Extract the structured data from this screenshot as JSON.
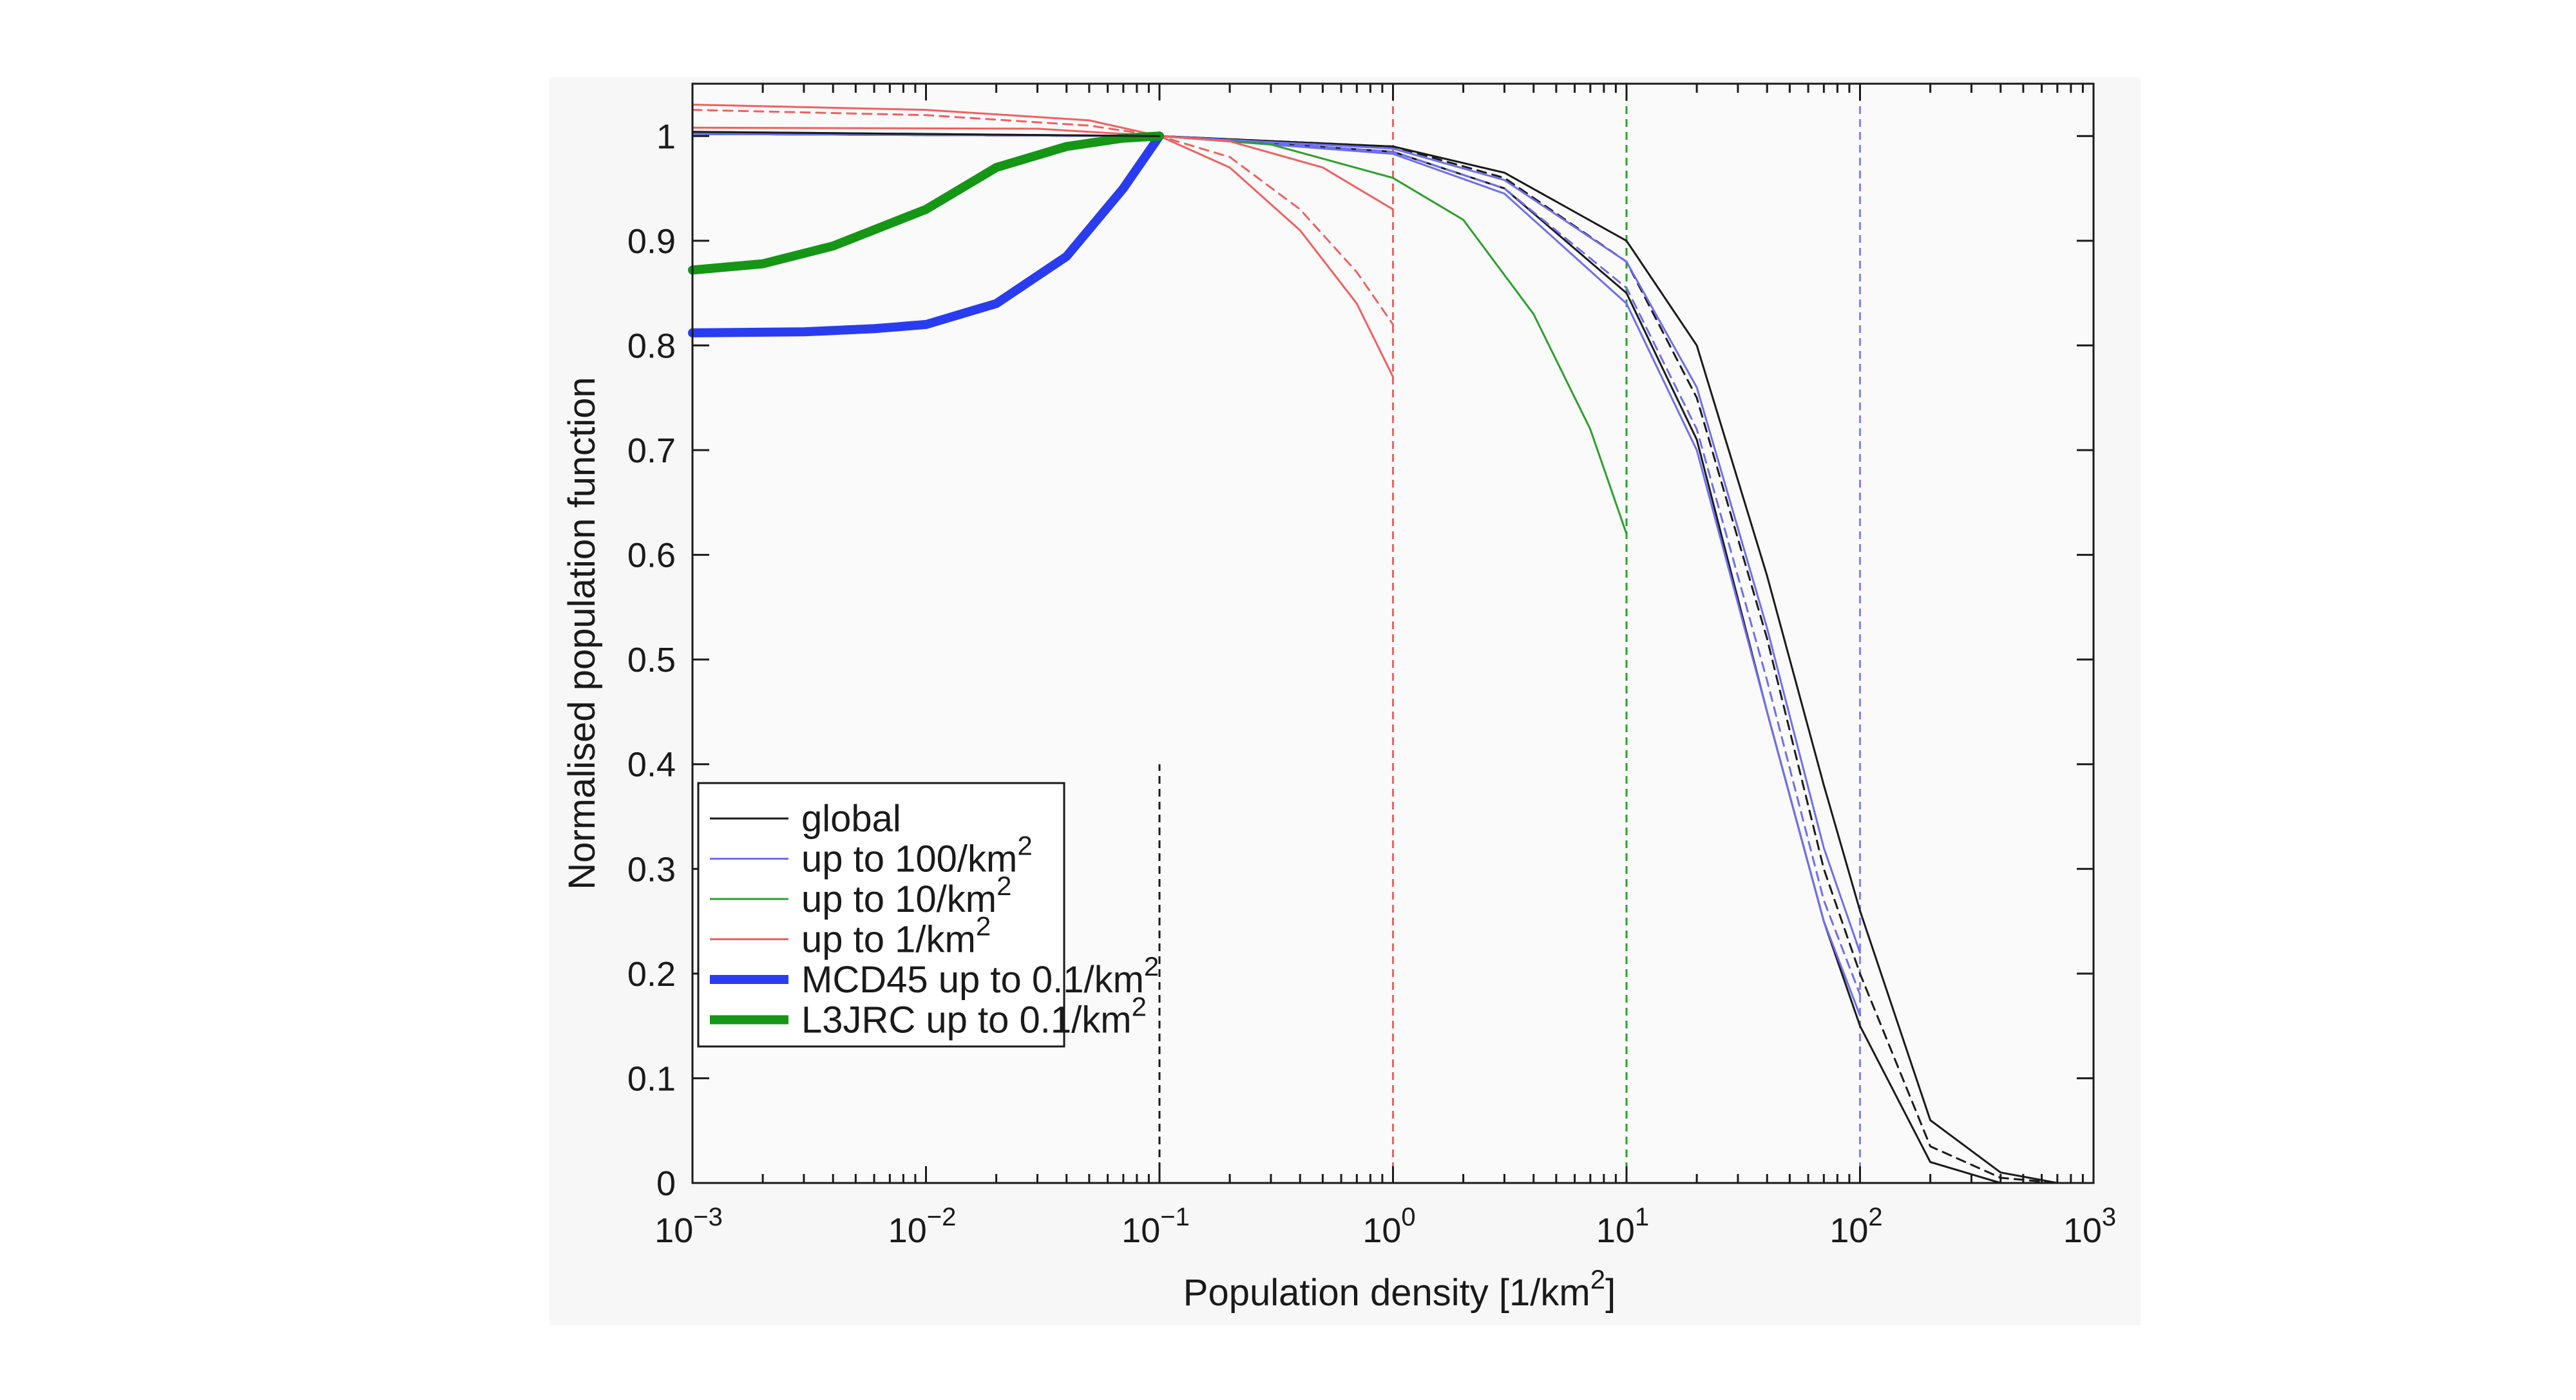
{
  "chart_data": {
    "type": "line",
    "xscale": "log",
    "xlim": [
      0.001,
      1000
    ],
    "ylim": [
      0,
      1.05
    ],
    "xlabel": "Population density [1/km²]",
    "ylabel": "Normalised population function",
    "x_ticks": [
      {
        "value": 0.001,
        "base": "10",
        "exp": "−3"
      },
      {
        "value": 0.01,
        "base": "10",
        "exp": "−2"
      },
      {
        "value": 0.1,
        "base": "10",
        "exp": "−1"
      },
      {
        "value": 1,
        "base": "10",
        "exp": "0"
      },
      {
        "value": 10,
        "base": "10",
        "exp": "1"
      },
      {
        "value": 100,
        "base": "10",
        "exp": "2"
      },
      {
        "value": 1000,
        "base": "10",
        "exp": "3"
      }
    ],
    "y_ticks": [
      {
        "value": 0,
        "label": "0"
      },
      {
        "value": 0.1,
        "label": "0.1"
      },
      {
        "value": 0.2,
        "label": "0.2"
      },
      {
        "value": 0.3,
        "label": "0.3"
      },
      {
        "value": 0.4,
        "label": "0.4"
      },
      {
        "value": 0.5,
        "label": "0.5"
      },
      {
        "value": 0.6,
        "label": "0.6"
      },
      {
        "value": 0.7,
        "label": "0.7"
      },
      {
        "value": 0.8,
        "label": "0.8"
      },
      {
        "value": 0.9,
        "label": "0.9"
      },
      {
        "value": 1,
        "label": "1"
      }
    ],
    "grid": false,
    "legend_position": "lower-left",
    "legend": [
      {
        "text": "global",
        "sup": "",
        "color": "#1a1a1a",
        "weight": "thin"
      },
      {
        "text": "up to 100/km",
        "sup": "2",
        "color": "#6e6ef0",
        "weight": "thin"
      },
      {
        "text": "up to 10/km",
        "sup": "2",
        "color": "#2ca02c",
        "weight": "thin"
      },
      {
        "text": "up to 1/km",
        "sup": "2",
        "color": "#f06060",
        "weight": "thin"
      },
      {
        "text": "MCD45 up to 0.1/km",
        "sup": "2",
        "color": "#2a3cf0",
        "weight": "thick"
      },
      {
        "text": "L3JRC up to 0.1/km",
        "sup": "2",
        "color": "#159615",
        "weight": "thick"
      }
    ],
    "vlines": [
      {
        "x": 0.1,
        "color": "#1a1a1a",
        "ymax": 0.4
      },
      {
        "x": 1,
        "color": "#f06060",
        "ymax": 1.05
      },
      {
        "x": 10,
        "color": "#2ca02c",
        "ymax": 1.05
      },
      {
        "x": 100,
        "color": "#8080ff",
        "ymax": 1.05
      }
    ],
    "series": [
      {
        "group": "global",
        "color": "#1a1a1a",
        "weight": "thin",
        "dashed": false,
        "points": [
          [
            0.001,
            1.002
          ],
          [
            0.1,
            1.0
          ],
          [
            1,
            0.99
          ],
          [
            3,
            0.965
          ],
          [
            10,
            0.9
          ],
          [
            20,
            0.8
          ],
          [
            40,
            0.58
          ],
          [
            70,
            0.38
          ],
          [
            100,
            0.26
          ],
          [
            200,
            0.06
          ],
          [
            400,
            0.01
          ],
          [
            700,
            0.0
          ],
          [
            1000,
            0.0
          ]
        ]
      },
      {
        "group": "global",
        "color": "#1a1a1a",
        "weight": "thin",
        "dashed": true,
        "points": [
          [
            0.001,
            1.002
          ],
          [
            0.1,
            1.0
          ],
          [
            1,
            0.99
          ],
          [
            3,
            0.96
          ],
          [
            10,
            0.88
          ],
          [
            20,
            0.75
          ],
          [
            40,
            0.52
          ],
          [
            70,
            0.3
          ],
          [
            100,
            0.2
          ],
          [
            200,
            0.035
          ],
          [
            400,
            0.005
          ],
          [
            700,
            0.0
          ],
          [
            1000,
            0.0
          ]
        ]
      },
      {
        "group": "global",
        "color": "#1a1a1a",
        "weight": "thin",
        "dashed": false,
        "points": [
          [
            0.001,
            1.002
          ],
          [
            0.1,
            1.0
          ],
          [
            1,
            0.985
          ],
          [
            3,
            0.95
          ],
          [
            10,
            0.85
          ],
          [
            20,
            0.71
          ],
          [
            40,
            0.45
          ],
          [
            70,
            0.25
          ],
          [
            100,
            0.15
          ],
          [
            200,
            0.02
          ],
          [
            400,
            0.0
          ],
          [
            1000,
            0.0
          ]
        ]
      },
      {
        "group": "100",
        "color": "#6e6ef0",
        "weight": "thin",
        "dashed": false,
        "points": [
          [
            0.001,
            1.002
          ],
          [
            0.1,
            1.0
          ],
          [
            1,
            0.988
          ],
          [
            3,
            0.958
          ],
          [
            10,
            0.88
          ],
          [
            20,
            0.76
          ],
          [
            40,
            0.53
          ],
          [
            70,
            0.32
          ],
          [
            100,
            0.22
          ]
        ]
      },
      {
        "group": "100",
        "color": "#6e6ef0",
        "weight": "thin",
        "dashed": true,
        "points": [
          [
            0.001,
            1.002
          ],
          [
            0.1,
            1.0
          ],
          [
            1,
            0.985
          ],
          [
            3,
            0.95
          ],
          [
            10,
            0.855
          ],
          [
            20,
            0.72
          ],
          [
            40,
            0.48
          ],
          [
            70,
            0.27
          ],
          [
            100,
            0.18
          ]
        ]
      },
      {
        "group": "100",
        "color": "#6e6ef0",
        "weight": "thin",
        "dashed": false,
        "points": [
          [
            0.001,
            1.002
          ],
          [
            0.1,
            1.0
          ],
          [
            1,
            0.983
          ],
          [
            3,
            0.945
          ],
          [
            10,
            0.84
          ],
          [
            20,
            0.7
          ],
          [
            40,
            0.45
          ],
          [
            70,
            0.25
          ],
          [
            100,
            0.16
          ]
        ]
      },
      {
        "group": "10",
        "color": "#2ca02c",
        "weight": "thin",
        "dashed": false,
        "points": [
          [
            0.001,
            1.004
          ],
          [
            0.1,
            1.0
          ],
          [
            0.3,
            0.992
          ],
          [
            1,
            0.96
          ],
          [
            2,
            0.92
          ],
          [
            4,
            0.83
          ],
          [
            7,
            0.72
          ],
          [
            10,
            0.62
          ]
        ]
      },
      {
        "group": "1",
        "color": "#f06060",
        "weight": "thin",
        "dashed": false,
        "points": [
          [
            0.001,
            1.03
          ],
          [
            0.01,
            1.025
          ],
          [
            0.05,
            1.015
          ],
          [
            0.1,
            1.0
          ],
          [
            0.2,
            0.995
          ],
          [
            0.5,
            0.97
          ],
          [
            1,
            0.93
          ]
        ]
      },
      {
        "group": "1",
        "color": "#f06060",
        "weight": "thin",
        "dashed": true,
        "points": [
          [
            0.001,
            1.025
          ],
          [
            0.01,
            1.02
          ],
          [
            0.05,
            1.01
          ],
          [
            0.1,
            1.0
          ],
          [
            0.2,
            0.98
          ],
          [
            0.4,
            0.93
          ],
          [
            0.7,
            0.87
          ],
          [
            1,
            0.82
          ]
        ]
      },
      {
        "group": "1",
        "color": "#f06060",
        "weight": "thin",
        "dashed": false,
        "points": [
          [
            0.001,
            1.008
          ],
          [
            0.03,
            1.007
          ],
          [
            0.1,
            1.0
          ],
          [
            0.2,
            0.97
          ],
          [
            0.4,
            0.91
          ],
          [
            0.7,
            0.84
          ],
          [
            1,
            0.77
          ]
        ]
      },
      {
        "group": "MCD45",
        "color": "#2a3cf0",
        "weight": "thick",
        "dashed": false,
        "points": [
          [
            0.001,
            0.812
          ],
          [
            0.003,
            0.813
          ],
          [
            0.006,
            0.816
          ],
          [
            0.01,
            0.82
          ],
          [
            0.02,
            0.84
          ],
          [
            0.04,
            0.885
          ],
          [
            0.07,
            0.95
          ],
          [
            0.1,
            1.0
          ]
        ]
      },
      {
        "group": "L3JRC",
        "color": "#159615",
        "weight": "thick",
        "dashed": false,
        "points": [
          [
            0.001,
            0.872
          ],
          [
            0.002,
            0.878
          ],
          [
            0.004,
            0.895
          ],
          [
            0.01,
            0.93
          ],
          [
            0.02,
            0.97
          ],
          [
            0.04,
            0.99
          ],
          [
            0.07,
            0.998
          ],
          [
            0.1,
            1.0
          ]
        ]
      },
      {
        "group": "global",
        "color": "#1a1a1a",
        "weight": "thin",
        "dashed": false,
        "points": [
          [
            0.001,
            1.004
          ],
          [
            0.1,
            1.0
          ]
        ]
      }
    ]
  }
}
